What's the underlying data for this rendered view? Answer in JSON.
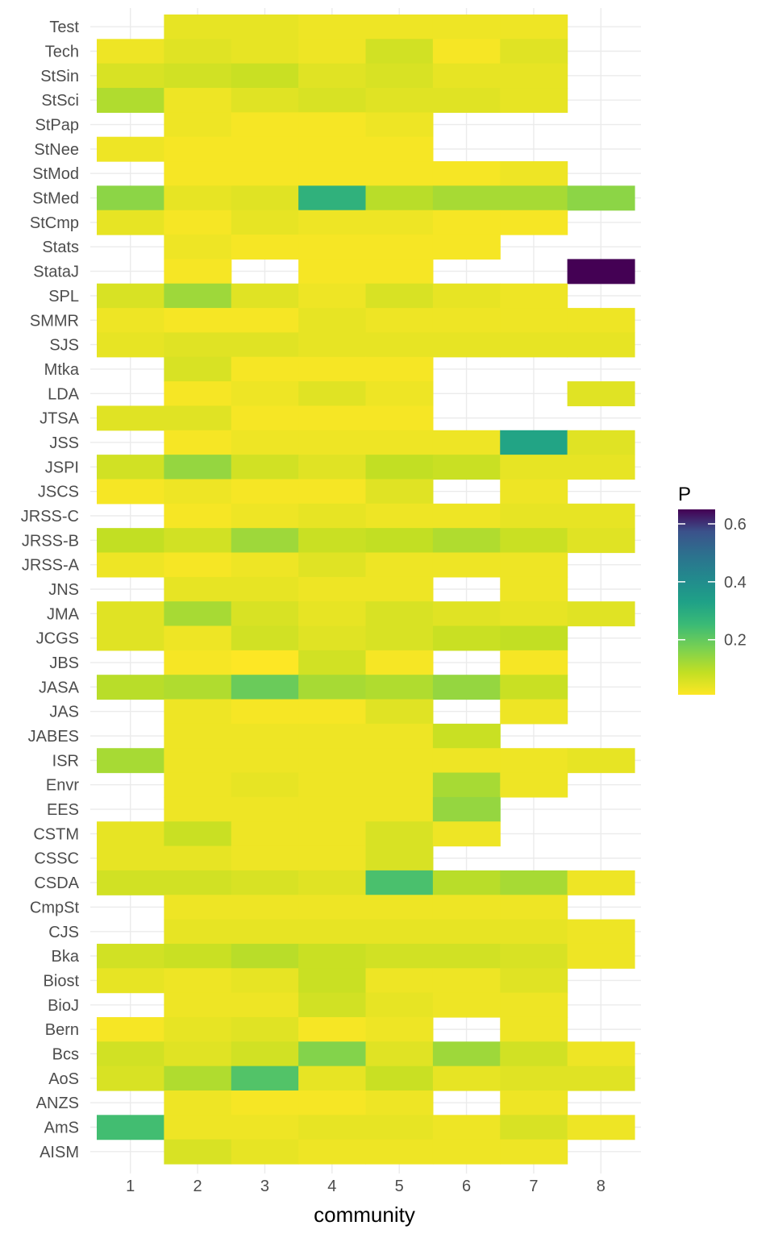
{
  "chart_data": {
    "type": "heatmap",
    "xlabel": "community",
    "ylabel": "",
    "x_categories": [
      "1",
      "2",
      "3",
      "4",
      "5",
      "6",
      "7",
      "8"
    ],
    "y_categories": [
      "Test",
      "Tech",
      "StSin",
      "StSci",
      "StPap",
      "StNee",
      "StMod",
      "StMed",
      "StCmp",
      "Stats",
      "StataJ",
      "SPL",
      "SMMR",
      "SJS",
      "Mtka",
      "LDA",
      "JTSA",
      "JSS",
      "JSPI",
      "JSCS",
      "JRSS-C",
      "JRSS-B",
      "JRSS-A",
      "JNS",
      "JMA",
      "JCGS",
      "JBS",
      "JASA",
      "JAS",
      "JABES",
      "ISR",
      "Envr",
      "EES",
      "CSTM",
      "CSSC",
      "CSDA",
      "CmpSt",
      "CJS",
      "Bka",
      "Biost",
      "BioJ",
      "Bern",
      "Bcs",
      "AoS",
      "ANZS",
      "AmS",
      "AISM"
    ],
    "values": [
      [
        null,
        0.04,
        0.04,
        0.03,
        0.03,
        0.03,
        0.03,
        null
      ],
      [
        0.03,
        0.05,
        0.04,
        0.03,
        0.07,
        0.02,
        0.05,
        null
      ],
      [
        0.06,
        0.07,
        0.08,
        0.05,
        0.06,
        0.04,
        0.04,
        null
      ],
      [
        0.11,
        0.03,
        0.05,
        0.06,
        0.05,
        0.05,
        0.04,
        null
      ],
      [
        null,
        0.03,
        0.02,
        0.02,
        0.03,
        null,
        null,
        null
      ],
      [
        0.03,
        0.02,
        0.02,
        0.02,
        0.02,
        null,
        null,
        null
      ],
      [
        null,
        0.02,
        0.02,
        0.02,
        0.02,
        0.02,
        0.03,
        null
      ],
      [
        0.15,
        0.04,
        0.05,
        0.28,
        0.1,
        0.12,
        0.12,
        0.15
      ],
      [
        0.04,
        0.02,
        0.04,
        0.03,
        0.03,
        0.02,
        0.02,
        null
      ],
      [
        null,
        0.03,
        0.02,
        0.02,
        0.02,
        0.02,
        null,
        null
      ],
      [
        null,
        0.02,
        null,
        0.02,
        0.02,
        null,
        null,
        0.65
      ],
      [
        0.06,
        0.13,
        0.05,
        0.03,
        0.06,
        0.04,
        0.03,
        null
      ],
      [
        0.03,
        0.02,
        0.02,
        0.04,
        0.03,
        0.03,
        0.03,
        0.03
      ],
      [
        0.04,
        0.05,
        0.05,
        0.04,
        0.04,
        0.04,
        0.04,
        0.04
      ],
      [
        null,
        0.06,
        0.02,
        0.02,
        0.02,
        null,
        null,
        null
      ],
      [
        null,
        0.02,
        0.03,
        0.05,
        0.03,
        null,
        null,
        0.05
      ],
      [
        0.05,
        0.05,
        0.02,
        0.02,
        0.02,
        null,
        null,
        null
      ],
      [
        null,
        0.02,
        0.03,
        0.03,
        0.03,
        0.03,
        0.32,
        0.05
      ],
      [
        0.07,
        0.14,
        0.07,
        0.05,
        0.09,
        0.08,
        0.04,
        0.04
      ],
      [
        0.02,
        0.03,
        0.02,
        0.02,
        0.05,
        null,
        0.03,
        null
      ],
      [
        null,
        0.02,
        0.03,
        0.04,
        0.03,
        0.03,
        0.04,
        0.04
      ],
      [
        0.09,
        0.07,
        0.13,
        0.08,
        0.09,
        0.11,
        0.08,
        0.05
      ],
      [
        0.03,
        0.02,
        0.03,
        0.05,
        0.03,
        0.03,
        0.03,
        null
      ],
      [
        null,
        0.04,
        0.04,
        0.03,
        0.03,
        null,
        0.03,
        null
      ],
      [
        0.05,
        0.12,
        0.06,
        0.04,
        0.06,
        0.05,
        0.04,
        0.05
      ],
      [
        0.05,
        0.03,
        0.07,
        0.05,
        0.06,
        0.08,
        0.09,
        null
      ],
      [
        null,
        0.02,
        0.01,
        0.07,
        0.02,
        null,
        0.02,
        null
      ],
      [
        0.1,
        0.11,
        0.19,
        0.12,
        0.11,
        0.14,
        0.08,
        null
      ],
      [
        null,
        0.03,
        0.02,
        0.02,
        0.05,
        null,
        0.03,
        null
      ],
      [
        null,
        0.03,
        0.03,
        0.03,
        0.03,
        0.08,
        null,
        null
      ],
      [
        0.12,
        0.03,
        0.03,
        0.03,
        0.03,
        0.03,
        0.03,
        0.04
      ],
      [
        null,
        0.03,
        0.04,
        0.03,
        0.03,
        0.12,
        0.03,
        null
      ],
      [
        null,
        0.03,
        0.03,
        0.03,
        0.03,
        0.14,
        null,
        null
      ],
      [
        0.04,
        0.08,
        0.03,
        0.03,
        0.06,
        0.03,
        null,
        null
      ],
      [
        0.04,
        0.04,
        0.03,
        0.03,
        0.06,
        null,
        null,
        null
      ],
      [
        0.07,
        0.07,
        0.06,
        0.05,
        0.23,
        0.1,
        0.12,
        0.03
      ],
      [
        null,
        0.03,
        0.03,
        0.03,
        0.03,
        0.03,
        0.03,
        null
      ],
      [
        null,
        0.04,
        0.04,
        0.04,
        0.04,
        0.04,
        0.04,
        0.03
      ],
      [
        0.07,
        0.08,
        0.1,
        0.08,
        0.07,
        0.07,
        0.06,
        0.03
      ],
      [
        0.04,
        0.03,
        0.04,
        0.08,
        0.03,
        0.03,
        0.05,
        null
      ],
      [
        null,
        0.03,
        0.03,
        0.07,
        0.04,
        0.03,
        0.03,
        null
      ],
      [
        0.02,
        0.04,
        0.05,
        0.02,
        0.03,
        null,
        0.03,
        null
      ],
      [
        0.07,
        0.05,
        0.07,
        0.16,
        0.05,
        0.13,
        0.07,
        0.03
      ],
      [
        0.06,
        0.11,
        0.22,
        0.04,
        0.08,
        0.04,
        0.05,
        0.05
      ],
      [
        null,
        0.03,
        0.02,
        0.02,
        0.03,
        null,
        0.03,
        null
      ],
      [
        0.24,
        0.03,
        0.03,
        0.04,
        0.04,
        0.03,
        0.06,
        0.03
      ],
      [
        null,
        0.06,
        0.04,
        0.03,
        0.03,
        0.03,
        0.03,
        null
      ]
    ],
    "legend": {
      "title": "P",
      "ticks": [
        0.2,
        0.4,
        0.6
      ],
      "tick_labels": [
        "0.2",
        "0.4",
        "0.6"
      ],
      "range": [
        0.01,
        0.65
      ],
      "colormap": "viridis (reversed)",
      "placement": "right"
    },
    "grid": true
  }
}
